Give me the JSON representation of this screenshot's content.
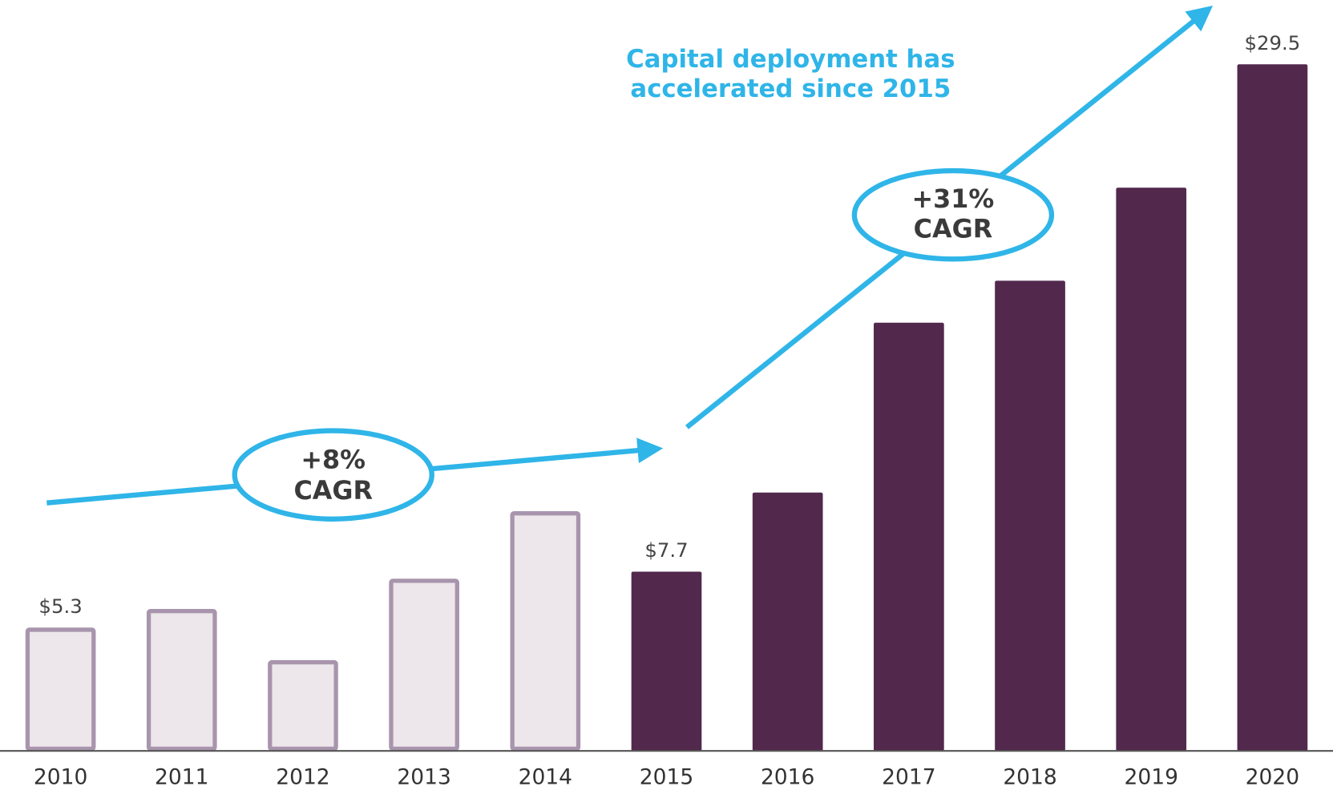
{
  "chart_data": {
    "type": "bar",
    "annotations": {
      "headline": [
        "Capital deployment has",
        "accelerated since 2015"
      ],
      "cagr_early": [
        "+8%",
        "CAGR"
      ],
      "cagr_late": [
        "+31%",
        "CAGR"
      ]
    },
    "categories": [
      "2010",
      "2011",
      "2012",
      "2013",
      "2014",
      "2015",
      "2016",
      "2017",
      "2018",
      "2019",
      "2020"
    ],
    "values": [
      5.3,
      6.1,
      3.9,
      7.4,
      10.3,
      7.7,
      11.1,
      18.4,
      20.2,
      24.2,
      29.5
    ],
    "value_labels": [
      "$5.3",
      null,
      null,
      null,
      null,
      "$7.7",
      null,
      null,
      null,
      null,
      "$29.5"
    ],
    "colors": [
      "#ede6ea",
      "#ede6ea",
      "#ede6ea",
      "#ede6ea",
      "#ede6ea",
      "#52284d",
      "#52284d",
      "#52284d",
      "#52284d",
      "#52284d",
      "#52284d"
    ],
    "edge_colors": [
      "#a895ad",
      "#a895ad",
      "#a895ad",
      "#a895ad",
      "#a895ad",
      "#52284d",
      "#52284d",
      "#52284d",
      "#52284d",
      "#52284d",
      "#52284d"
    ],
    "ylim": [
      0,
      30
    ]
  }
}
